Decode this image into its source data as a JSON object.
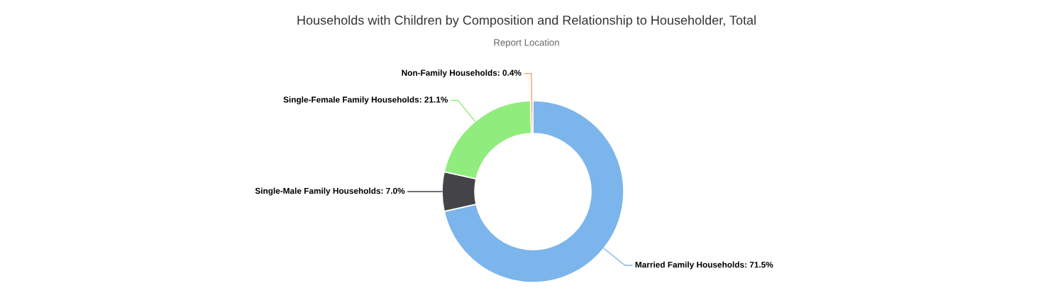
{
  "chart_data": {
    "type": "donut",
    "title": "Households with Children by Composition and Relationship to Householder, Total",
    "subtitle": "Report Location",
    "categories": [
      "Married Family Households",
      "Single-Male Family Households",
      "Single-Female Family Households",
      "Non-Family Households"
    ],
    "values": [
      71.5,
      7.0,
      21.1,
      0.4
    ],
    "colors": [
      "#7cb5ec",
      "#434348",
      "#90ed7d",
      "#f7a35c"
    ],
    "value_labels": [
      "71.5%",
      "7.0%",
      "21.1%",
      "0.4%"
    ]
  }
}
